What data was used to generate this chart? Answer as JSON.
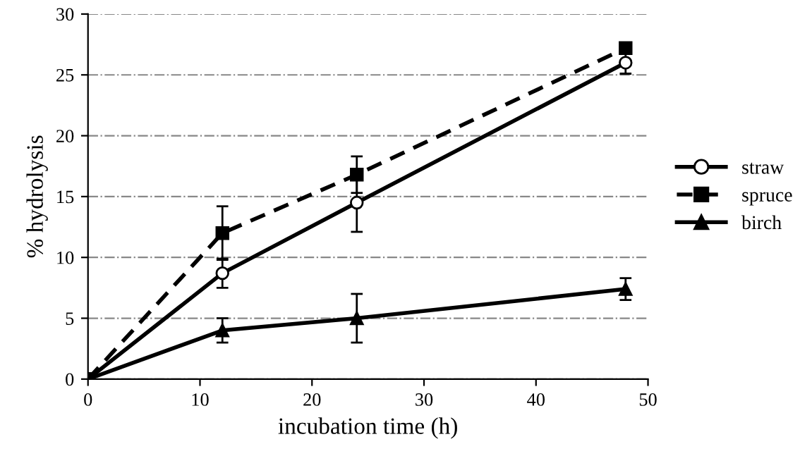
{
  "chart_data": {
    "type": "line",
    "xlabel": "incubation time (h)",
    "ylabel": "% hydrolysis",
    "x": [
      0,
      12,
      24,
      48
    ],
    "series": [
      {
        "name": "straw",
        "color": "#000000",
        "values": [
          0,
          8.7,
          14.5,
          26
        ],
        "errors": [
          null,
          1.2,
          2.4,
          0.9
        ],
        "marker": "circle",
        "line_style": "solid"
      },
      {
        "name": "spruce",
        "color": "#000000",
        "values": [
          0,
          12,
          16.8,
          27.2
        ],
        "errors": [
          null,
          2.2,
          1.5,
          null
        ],
        "marker": "square",
        "line_style": "dashed"
      },
      {
        "name": "birch",
        "color": "#000000",
        "values": [
          0,
          4,
          5,
          7.4
        ],
        "errors": [
          null,
          1,
          2,
          0.9
        ],
        "marker": "triangle",
        "line_style": "solid"
      }
    ],
    "xlim": [
      0,
      50
    ],
    "xticks": [
      0,
      10,
      20,
      30,
      40,
      50
    ],
    "ylim": [
      0,
      30
    ],
    "yticks": [
      0,
      5,
      10,
      15,
      20,
      25,
      30
    ],
    "grid": "y",
    "legend": "right"
  }
}
